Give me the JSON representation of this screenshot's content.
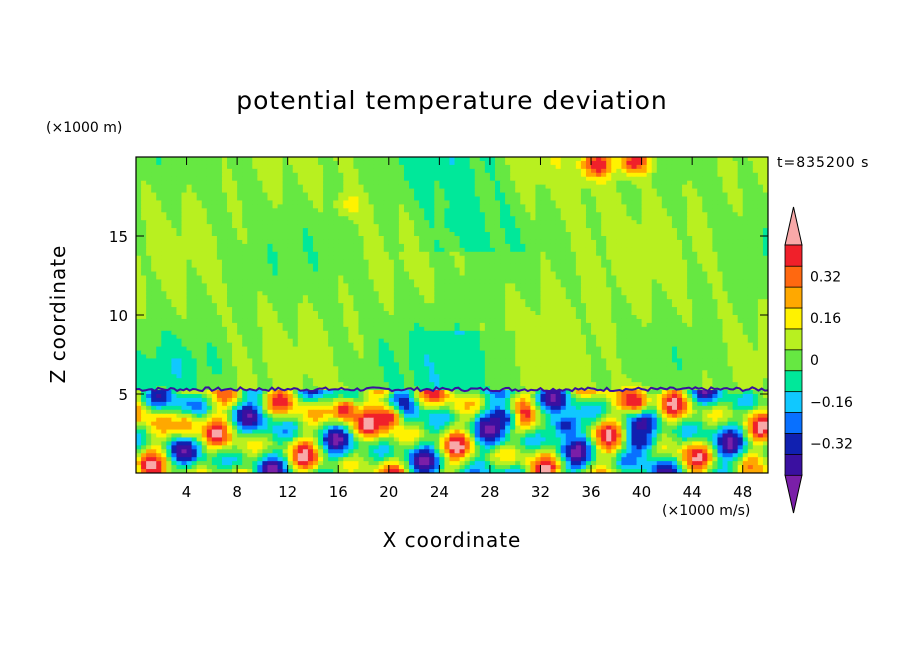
{
  "chart_data": {
    "type": "heatmap",
    "title": "potential temperature deviation",
    "xlabel": "X coordinate",
    "ylabel": "Z coordinate",
    "x_unit": "(×1000 m/s)",
    "y_unit": "(×1000 m)",
    "time_label": "t=835200 s",
    "xlim": [
      0,
      50
    ],
    "ylim": [
      0,
      20
    ],
    "x_ticks": [
      4,
      8,
      12,
      16,
      20,
      24,
      28,
      32,
      36,
      40,
      44,
      48
    ],
    "y_ticks": [
      5,
      10,
      15
    ],
    "colorbar": {
      "levels": [
        -0.48,
        -0.4,
        -0.32,
        -0.24,
        -0.16,
        -0.08,
        0,
        0.08,
        0.16,
        0.24,
        0.32,
        0.4,
        0.48
      ],
      "labels": [
        {
          "value": 0.32,
          "text": "0.32"
        },
        {
          "value": 0.16,
          "text": "0.16"
        },
        {
          "value": 0,
          "text": "0"
        },
        {
          "value": -0.16,
          "text": "−0.16"
        },
        {
          "value": -0.32,
          "text": "−0.32"
        }
      ],
      "colors_low_to_high": [
        "#7a1fa8",
        "#3a10a0",
        "#1020b0",
        "#0870ff",
        "#10c8ff",
        "#00e89a",
        "#66e842",
        "#b8f020",
        "#fff200",
        "#ffa800",
        "#ff6810",
        "#f0202a",
        "#f8a8a8"
      ]
    },
    "regions": [
      {
        "name": "upper-layer",
        "z_range": [
          5.3,
          20
        ],
        "dominant_values": [
          0,
          0.08
        ],
        "note_values": [
          -0.08
        ]
      },
      {
        "name": "lower-layer",
        "z_range": [
          0,
          5.3
        ],
        "value_range": [
          -0.48,
          0.48
        ]
      }
    ],
    "features": [
      {
        "x": 4,
        "z": 3,
        "value": 0.32
      },
      {
        "x": 16.5,
        "z": 4,
        "value": 0.48
      },
      {
        "x": 20,
        "z": 3.5,
        "value": 0.48
      },
      {
        "x": 36.5,
        "z": 19.5,
        "value": 0.48
      },
      {
        "x": 39.5,
        "z": 19.7,
        "value": 0.48
      },
      {
        "x": 39.5,
        "z": 4.5,
        "value": 0.48
      },
      {
        "x": 17,
        "z": 17,
        "value": 0.16
      },
      {
        "x": 25.5,
        "z": 16,
        "value": -0.08
      },
      {
        "x": 26,
        "z": 7.5,
        "value": -0.08
      },
      {
        "x": 29,
        "z": 3.5,
        "value": -0.4
      },
      {
        "x": 34,
        "z": 3,
        "value": -0.4
      },
      {
        "x": 40,
        "z": 2,
        "value": -0.4
      }
    ]
  }
}
